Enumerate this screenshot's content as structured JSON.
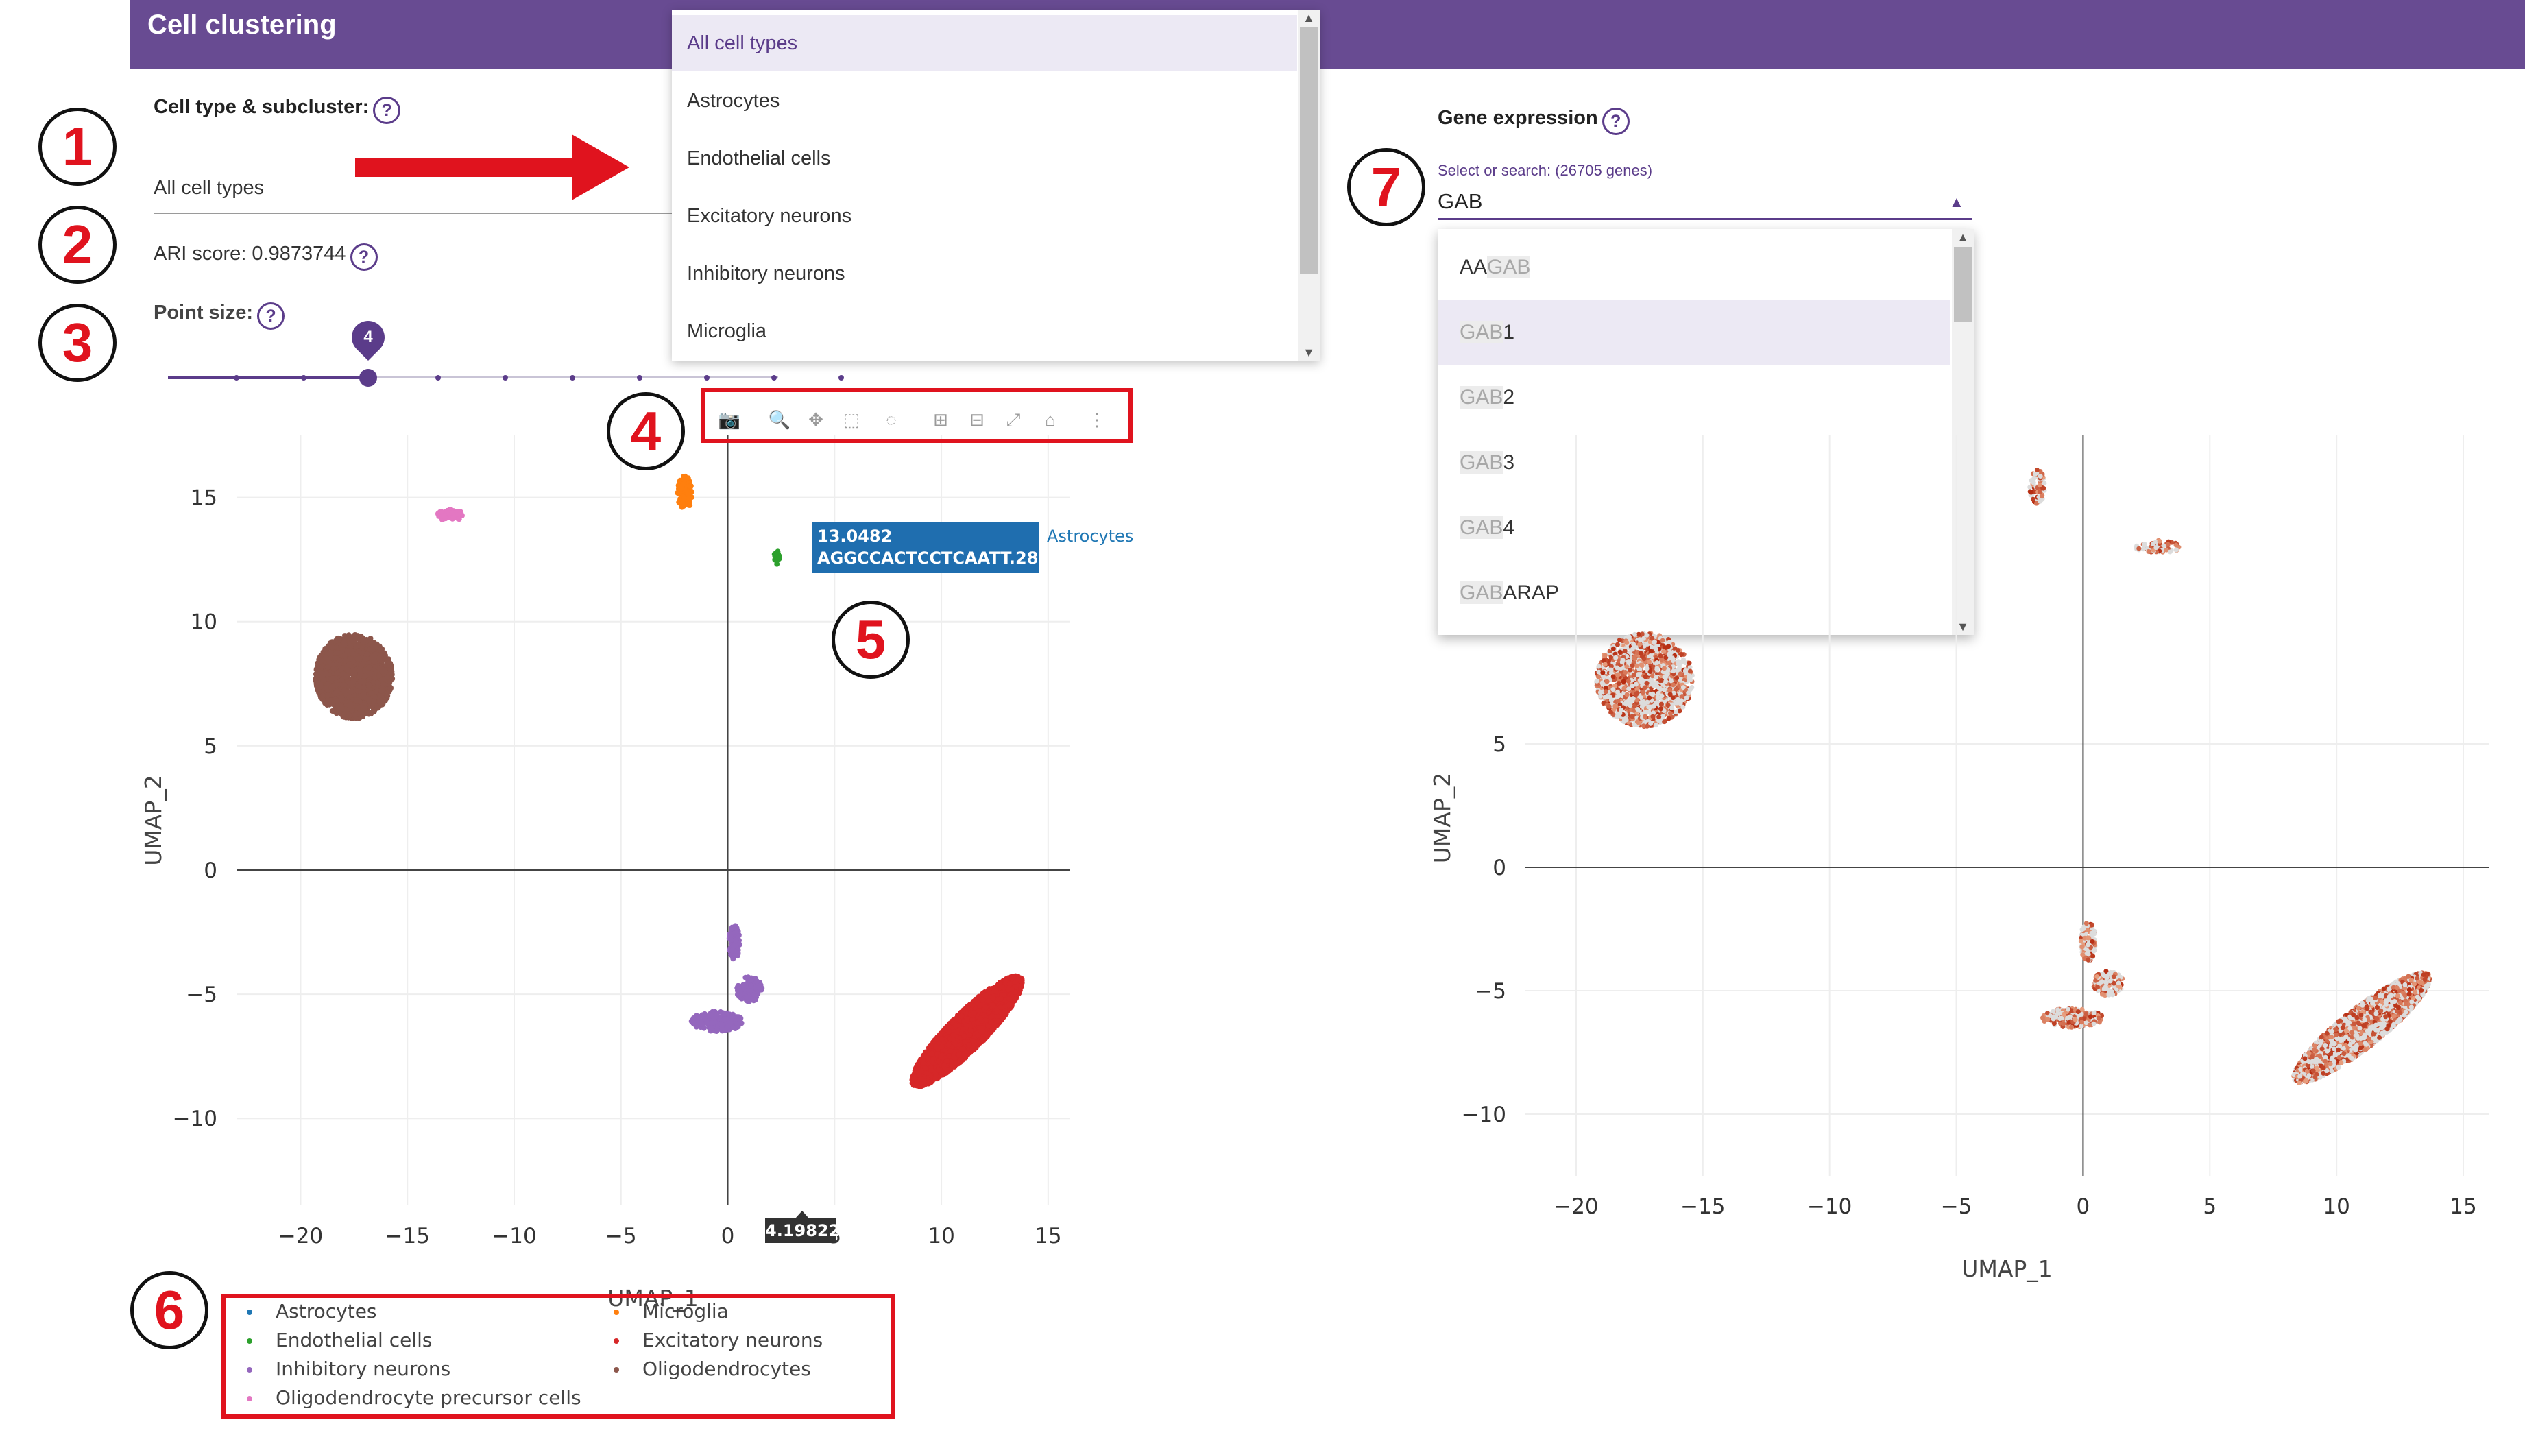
{
  "header": {
    "title": "Cell clustering"
  },
  "left_panel": {
    "cell_type_label": "Cell type & subcluster:",
    "cell_type_value": "All cell types",
    "ari_label": "ARI score: 0.9873744",
    "point_size_label": "Point size:",
    "point_size_value": "4",
    "point_size_level": 4,
    "point_size_max": 10
  },
  "cell_type_dropdown": {
    "options": [
      "All cell types",
      "Astrocytes",
      "Endothelial cells",
      "Excitatory neurons",
      "Inhibitory neurons",
      "Microglia"
    ],
    "selected": "All cell types"
  },
  "gene_panel": {
    "label": "Gene expression",
    "search_hint": "Select or search: (26705 genes)",
    "search_value": "GAB",
    "caret_icon": "caret-up-icon",
    "options": [
      {
        "match": "GAB",
        "prefix": "AA",
        "suffix": ""
      },
      {
        "match": "GAB",
        "prefix": "",
        "suffix": "1"
      },
      {
        "match": "GAB",
        "prefix": "",
        "suffix": "2"
      },
      {
        "match": "GAB",
        "prefix": "",
        "suffix": "3"
      },
      {
        "match": "GAB",
        "prefix": "",
        "suffix": "4"
      },
      {
        "match": "GAB",
        "prefix": "",
        "suffix": "ARAP"
      }
    ],
    "selected_index": 1
  },
  "toolbar": {
    "icons": [
      "camera-icon",
      "zoom-icon",
      "pan-icon",
      "box-select-icon",
      "lasso-select-icon",
      "zoom-in-icon",
      "zoom-out-icon",
      "autoscale-icon",
      "reset-axes-icon",
      "spike-lines-icon"
    ]
  },
  "tooltip": {
    "y_value": "13.0482",
    "barcode": "AGGCCACTCCTCAATT.28",
    "series": "Astrocytes",
    "x_value": "4.19822",
    "color": "#1f77b4"
  },
  "annotations": [
    "1",
    "2",
    "3",
    "4",
    "5",
    "6",
    "7"
  ],
  "colors": {
    "brand": "#684b92",
    "accent": "#5b3c8a",
    "annotation_red": "#e0131e"
  },
  "chart_data": [
    {
      "type": "scatter",
      "xlabel": "UMAP_1",
      "ylabel": "UMAP_2",
      "xlim": [
        -23,
        16
      ],
      "ylim": [
        -13.5,
        17.5
      ],
      "x_ticks": [
        "−20",
        "−15",
        "−10",
        "−5",
        "0",
        "5",
        "10",
        "15"
      ],
      "y_ticks": [
        "15",
        "10",
        "5",
        "0",
        "−5",
        "−10"
      ],
      "grid": true,
      "legend": "bottom",
      "series": [
        {
          "name": "Astrocytes",
          "color": "#1f77b4",
          "x": [
            4.0,
            4.5,
            5.0
          ],
          "y": [
            13.1,
            13.2,
            13.3
          ]
        },
        {
          "name": "Endothelial cells",
          "color": "#2ca02c",
          "x": [
            2.2,
            2.4
          ],
          "y": [
            12.5,
            12.7
          ]
        },
        {
          "name": "Inhibitory neurons",
          "color": "#9467bd",
          "x": [
            0.3,
            0.5,
            -0.5,
            -1.0,
            2.0
          ],
          "y": [
            -2.5,
            -4.0,
            -5.5,
            -6.0,
            -5.5
          ]
        },
        {
          "name": "Oligodendrocyte precursor cells",
          "color": "#e377c2",
          "x": [
            -13.2,
            -12.8
          ],
          "y": [
            14.4,
            14.2
          ]
        },
        {
          "name": "Microglia",
          "color": "#ff7f0e",
          "x": [
            -2.0,
            -1.8
          ],
          "y": [
            15.6,
            15.0
          ]
        },
        {
          "name": "Excitatory neurons",
          "color": "#d62728",
          "x": [
            8.0,
            10.5,
            13.5
          ],
          "y": [
            -10.0,
            -7.0,
            -4.0
          ]
        },
        {
          "name": "Oligodendrocytes",
          "color": "#8c564b",
          "x": [
            -19.0,
            -17.5,
            -16.0
          ],
          "y": [
            8.0,
            7.5,
            7.0
          ]
        }
      ]
    },
    {
      "type": "scatter",
      "xlabel": "UMAP_1",
      "ylabel": "UMAP_2",
      "xlim": [
        -22,
        16
      ],
      "ylim": [
        -12.5,
        17.5
      ],
      "x_ticks": [
        "−20",
        "−15",
        "−10",
        "−5",
        "0",
        "5",
        "10",
        "15"
      ],
      "y_ticks": [
        "5",
        "0",
        "−5",
        "−10"
      ],
      "grid": true,
      "colorscale": [
        "#dcdcdc",
        "#b52a0f"
      ]
    }
  ]
}
